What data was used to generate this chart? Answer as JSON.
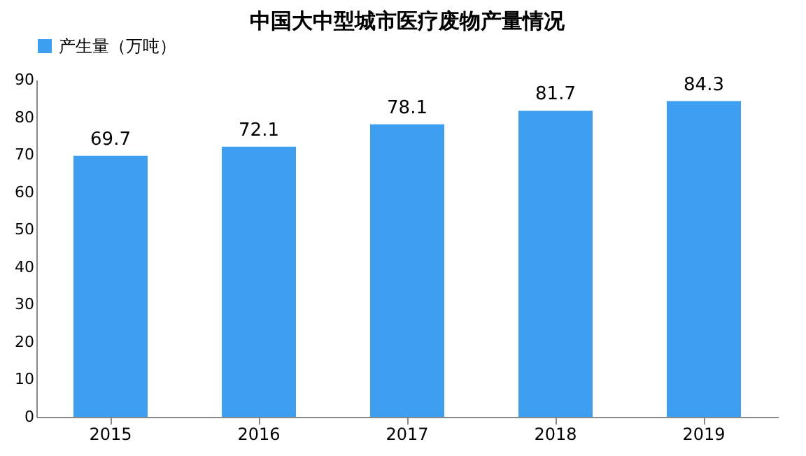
{
  "chart_data": {
    "type": "bar",
    "title": "中国大中型城市医疗废物产量情况",
    "categories": [
      "2015",
      "2016",
      "2017",
      "2018",
      "2019"
    ],
    "series": [
      {
        "name": "产生量（万吨）",
        "color": "#3e9ff0",
        "values": [
          69.7,
          72.1,
          78.1,
          81.7,
          84.3
        ]
      }
    ],
    "ylim": [
      0,
      90
    ],
    "yticks": [
      0,
      10,
      20,
      30,
      40,
      50,
      60,
      70,
      80,
      90
    ],
    "grid": false,
    "legend": "top",
    "data_labels": true
  }
}
